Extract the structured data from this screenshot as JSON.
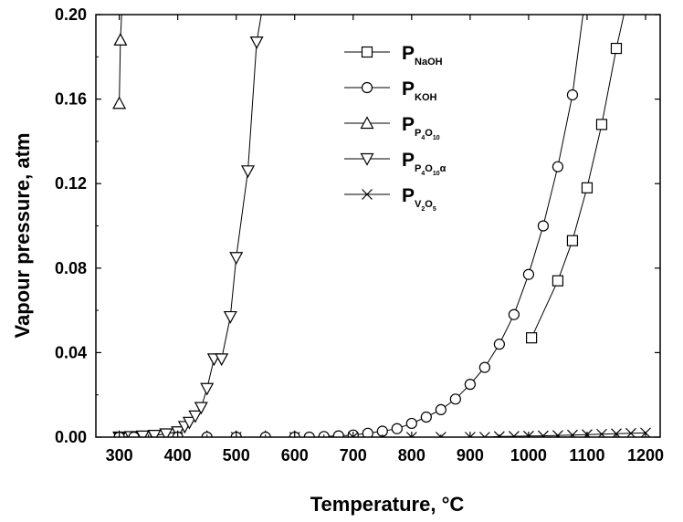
{
  "chart_data": {
    "type": "line",
    "xlabel": "Temperature, °C",
    "ylabel": "Vapour pressure, atm",
    "xlim": [
      260,
      1225
    ],
    "ylim": [
      0,
      0.2
    ],
    "xticks": [
      300,
      400,
      500,
      600,
      700,
      800,
      900,
      1000,
      1100,
      1200
    ],
    "yticks": [
      0.0,
      0.04,
      0.08,
      0.12,
      0.16,
      0.2
    ],
    "ytick_labels": [
      "0.00",
      "0.04",
      "0.08",
      "0.12",
      "0.16",
      "0.20"
    ],
    "legend_position": "top-center",
    "series": [
      {
        "key": "naoh",
        "legend_main": "P",
        "legend_sub": "NaOH",
        "legend_subsub": "",
        "legend_tail": "",
        "marker": "square",
        "points": [
          [
            1005,
            0.047
          ],
          [
            1050,
            0.074
          ],
          [
            1075,
            0.093
          ],
          [
            1100,
            0.118
          ],
          [
            1125,
            0.148
          ],
          [
            1150,
            0.184
          ]
        ],
        "curve_extend": [
          [
            1163,
            0.2
          ]
        ]
      },
      {
        "key": "koh",
        "legend_main": "P",
        "legend_sub": "KOH",
        "legend_subsub": "",
        "legend_tail": "",
        "marker": "circle",
        "points": [
          [
            650,
            0.0003
          ],
          [
            675,
            0.0006
          ],
          [
            700,
            0.001
          ],
          [
            725,
            0.0018
          ],
          [
            750,
            0.0028
          ],
          [
            775,
            0.004
          ],
          [
            800,
            0.0065
          ],
          [
            825,
            0.0095
          ],
          [
            850,
            0.013
          ],
          [
            875,
            0.018
          ],
          [
            900,
            0.025
          ],
          [
            925,
            0.033
          ],
          [
            950,
            0.044
          ],
          [
            975,
            0.058
          ],
          [
            1000,
            0.077
          ],
          [
            1025,
            0.1
          ],
          [
            1050,
            0.128
          ],
          [
            1075,
            0.162
          ]
        ],
        "curve_extend": [
          [
            1093,
            0.2
          ]
        ]
      },
      {
        "key": "p4o10",
        "legend_main": "P",
        "legend_sub": "P",
        "legend_subsub": "4",
        "legend_sub2": "O",
        "legend_subsub2": "10",
        "legend_tail": "",
        "marker": "triangle-up",
        "points": [
          [
            300,
            0.158
          ],
          [
            302,
            0.188
          ]
        ],
        "curve_extend": [
          [
            304,
            0.2
          ]
        ]
      },
      {
        "key": "p4o10a",
        "legend_main": "P",
        "legend_sub": "P",
        "legend_subsub": "4",
        "legend_sub2": "O",
        "legend_subsub2": "10",
        "legend_tail": "α",
        "marker": "triangle-down",
        "points": [
          [
            300,
            0.0
          ],
          [
            320,
            0.0002
          ],
          [
            340,
            0.0005
          ],
          [
            360,
            0.0008
          ],
          [
            380,
            0.0015
          ],
          [
            400,
            0.0025
          ],
          [
            412,
            0.005
          ],
          [
            420,
            0.007
          ],
          [
            430,
            0.01
          ],
          [
            440,
            0.014
          ],
          [
            450,
            0.023
          ],
          [
            462,
            0.037
          ],
          [
            475,
            0.037
          ],
          [
            490,
            0.057
          ],
          [
            500,
            0.085
          ],
          [
            520,
            0.126
          ],
          [
            535,
            0.187
          ]
        ],
        "curve_extend": [
          [
            543,
            0.2
          ]
        ]
      },
      {
        "key": "v2o5",
        "legend_main": "P",
        "legend_sub": "V",
        "legend_subsub": "2",
        "legend_sub2": "O",
        "legend_subsub2": "5",
        "legend_tail": "",
        "marker": "x",
        "points": [
          [
            300,
            0.0
          ],
          [
            400,
            0.0
          ],
          [
            500,
            0.0
          ],
          [
            600,
            0.0
          ],
          [
            700,
            0.0
          ],
          [
            800,
            0.0
          ],
          [
            850,
            0.0
          ],
          [
            900,
            0.0
          ],
          [
            925,
            0.0
          ],
          [
            950,
            0.0003
          ],
          [
            975,
            0.0004
          ],
          [
            1000,
            0.0005
          ],
          [
            1025,
            0.0006
          ],
          [
            1050,
            0.0008
          ],
          [
            1075,
            0.001
          ],
          [
            1100,
            0.0012
          ],
          [
            1125,
            0.0014
          ],
          [
            1150,
            0.0016
          ],
          [
            1175,
            0.0018
          ],
          [
            1200,
            0.002
          ]
        ],
        "curve_extend": []
      }
    ],
    "extra_markers": [
      {
        "marker": "triangle-up",
        "points": [
          [
            300,
            0.0
          ],
          [
            350,
            0.0
          ],
          [
            400,
            0.0
          ],
          [
            450,
            0.0
          ],
          [
            500,
            0.0
          ],
          [
            550,
            0.0
          ],
          [
            600,
            0.0
          ]
        ]
      },
      {
        "marker": "circle",
        "points": [
          [
            300,
            0.0
          ],
          [
            325,
            0.0
          ],
          [
            400,
            0.0
          ],
          [
            450,
            0.0
          ],
          [
            500,
            0.0
          ],
          [
            550,
            0.0
          ],
          [
            600,
            0.0
          ],
          [
            625,
            0.0
          ]
        ]
      }
    ]
  }
}
